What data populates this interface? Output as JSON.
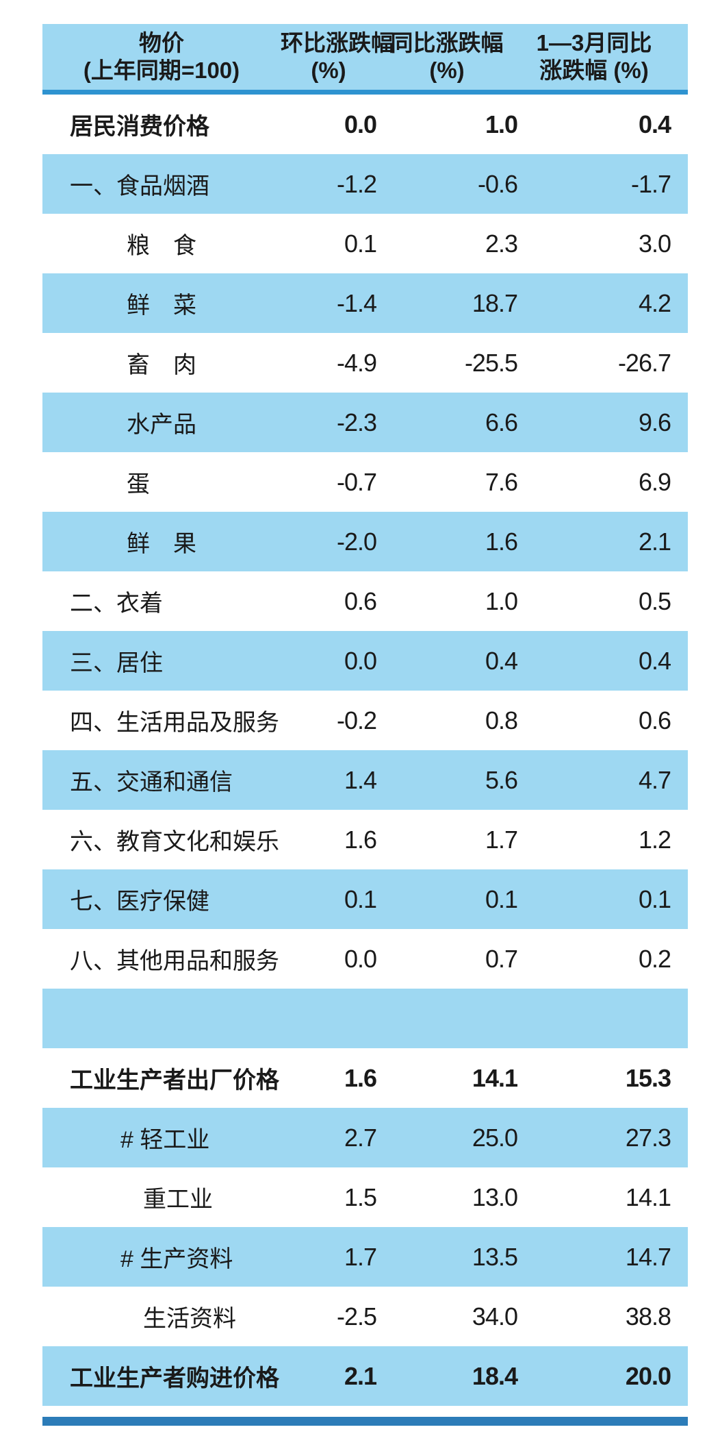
{
  "colors": {
    "row_highlight_blue": "#9ED8F2",
    "header_rule_blue": "#2E93D0",
    "footer_rule_blue": "#2C7CB8",
    "text": "#1A1A1A"
  },
  "table": {
    "header": {
      "col1": [
        "物价",
        "(上年同期=100)"
      ],
      "col2": [
        "环比涨跌幅",
        "(%)"
      ],
      "col3": [
        "同比涨跌幅",
        "(%)"
      ],
      "col4": [
        "1—3月同比",
        "涨跌幅 (%)"
      ]
    },
    "rows": [
      {
        "label": "居民消费价格",
        "level": "main",
        "bold": true,
        "values": [
          "0.0",
          "1.0",
          "0.4"
        ]
      },
      {
        "label": "一、食品烟酒",
        "level": "main",
        "bold": false,
        "values": [
          "-1.2",
          "-0.6",
          "-1.7"
        ]
      },
      {
        "label": "粮　食",
        "level": "sub",
        "bold": false,
        "values": [
          "0.1",
          "2.3",
          "3.0"
        ]
      },
      {
        "label": "鲜　菜",
        "level": "sub",
        "bold": false,
        "values": [
          "-1.4",
          "18.7",
          "4.2"
        ]
      },
      {
        "label": "畜　肉",
        "level": "sub",
        "bold": false,
        "values": [
          "-4.9",
          "-25.5",
          "-26.7"
        ]
      },
      {
        "label": "水产品",
        "level": "sub",
        "bold": false,
        "values": [
          "-2.3",
          "6.6",
          "9.6"
        ]
      },
      {
        "label": "蛋",
        "level": "sub",
        "bold": false,
        "values": [
          "-0.7",
          "7.6",
          "6.9"
        ]
      },
      {
        "label": "鲜　果",
        "level": "sub",
        "bold": false,
        "values": [
          "-2.0",
          "1.6",
          "2.1"
        ]
      },
      {
        "label": "二、衣着",
        "level": "main",
        "bold": false,
        "values": [
          "0.6",
          "1.0",
          "0.5"
        ]
      },
      {
        "label": "三、居住",
        "level": "main",
        "bold": false,
        "values": [
          "0.0",
          "0.4",
          "0.4"
        ]
      },
      {
        "label": "四、生活用品及服务",
        "level": "main",
        "bold": false,
        "values": [
          "-0.2",
          "0.8",
          "0.6"
        ]
      },
      {
        "label": "五、交通和通信",
        "level": "main",
        "bold": false,
        "values": [
          "1.4",
          "5.6",
          "4.7"
        ]
      },
      {
        "label": "六、教育文化和娱乐",
        "level": "main",
        "bold": false,
        "values": [
          "1.6",
          "1.7",
          "1.2"
        ]
      },
      {
        "label": "七、医疗保健",
        "level": "main",
        "bold": false,
        "values": [
          "0.1",
          "0.1",
          "0.1"
        ]
      },
      {
        "label": "八、其他用品和服务",
        "level": "main",
        "bold": false,
        "values": [
          "0.0",
          "0.7",
          "0.2"
        ]
      },
      {
        "label": "",
        "level": "spacer",
        "bold": false,
        "values": [
          "",
          "",
          ""
        ]
      },
      {
        "label": "工业生产者出厂价格",
        "level": "main",
        "bold": true,
        "values": [
          "1.6",
          "14.1",
          "15.3"
        ]
      },
      {
        "label": "# 轻工业",
        "level": "hash",
        "bold": false,
        "values": [
          "2.7",
          "25.0",
          "27.3"
        ]
      },
      {
        "label": "重工业",
        "level": "sub2",
        "bold": false,
        "values": [
          "1.5",
          "13.0",
          "14.1"
        ]
      },
      {
        "label": "# 生产资料",
        "level": "hash",
        "bold": false,
        "values": [
          "1.7",
          "13.5",
          "14.7"
        ]
      },
      {
        "label": "生活资料",
        "level": "sub2",
        "bold": false,
        "values": [
          "-2.5",
          "34.0",
          "38.8"
        ]
      },
      {
        "label": "工业生产者购进价格",
        "level": "main",
        "bold": true,
        "values": [
          "2.1",
          "18.4",
          "20.0"
        ]
      }
    ]
  },
  "chart_data": {
    "type": "table",
    "title": "物价（上年同期=100）",
    "columns": [
      "物价（上年同期=100）",
      "环比涨跌幅（%）",
      "同比涨跌幅（%）",
      "1—3月同比涨跌幅（%）"
    ],
    "rows": [
      [
        "居民消费价格",
        0.0,
        1.0,
        0.4
      ],
      [
        "一、食品烟酒",
        -1.2,
        -0.6,
        -1.7
      ],
      [
        "粮食",
        0.1,
        2.3,
        3.0
      ],
      [
        "鲜菜",
        -1.4,
        18.7,
        4.2
      ],
      [
        "畜肉",
        -4.9,
        -25.5,
        -26.7
      ],
      [
        "水产品",
        -2.3,
        6.6,
        9.6
      ],
      [
        "蛋",
        -0.7,
        7.6,
        6.9
      ],
      [
        "鲜果",
        -2.0,
        1.6,
        2.1
      ],
      [
        "二、衣着",
        0.6,
        1.0,
        0.5
      ],
      [
        "三、居住",
        0.0,
        0.4,
        0.4
      ],
      [
        "四、生活用品及服务",
        -0.2,
        0.8,
        0.6
      ],
      [
        "五、交通和通信",
        1.4,
        5.6,
        4.7
      ],
      [
        "六、教育文化和娱乐",
        1.6,
        1.7,
        1.2
      ],
      [
        "七、医疗保健",
        0.1,
        0.1,
        0.1
      ],
      [
        "八、其他用品和服务",
        0.0,
        0.7,
        0.2
      ],
      [
        "工业生产者出厂价格",
        1.6,
        14.1,
        15.3
      ],
      [
        "#轻工业",
        2.7,
        25.0,
        27.3
      ],
      [
        "重工业",
        1.5,
        13.0,
        14.1
      ],
      [
        "#生产资料",
        1.7,
        13.5,
        14.7
      ],
      [
        "生活资料",
        -2.5,
        34.0,
        38.8
      ],
      [
        "工业生产者购进价格",
        2.1,
        18.4,
        20.0
      ]
    ],
    "layout": {
      "striped": true,
      "stripe_color": "#9ED8F2",
      "header_rule": true,
      "bottom_rule": true
    }
  }
}
